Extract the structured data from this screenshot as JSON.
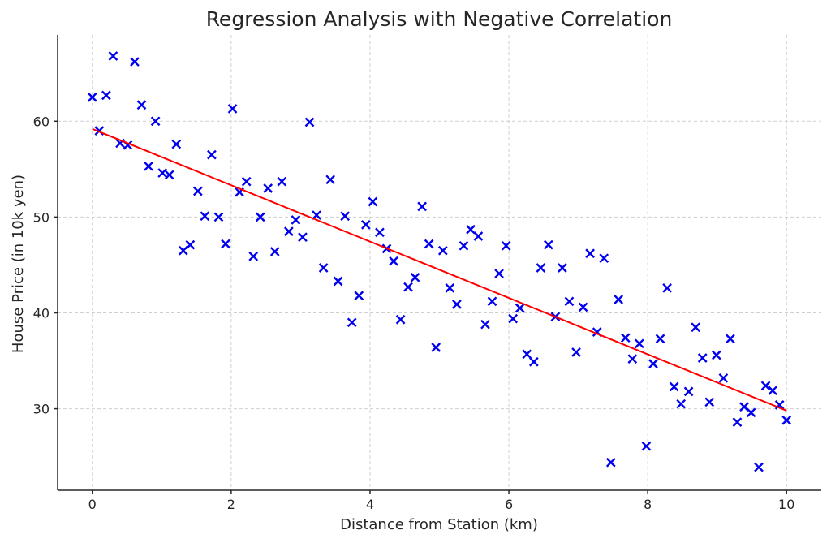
{
  "chart_data": {
    "type": "scatter",
    "title": "Regression Analysis with Negative Correlation",
    "xlabel": "Distance from Station (km)",
    "ylabel": "House Price (in 10k yen)",
    "xlim": [
      -0.5,
      10.5
    ],
    "ylim": [
      21.5,
      69
    ],
    "xticks": [
      0,
      2,
      4,
      6,
      8,
      10
    ],
    "yticks": [
      30,
      40,
      50,
      60
    ],
    "grid": true,
    "colors": {
      "points": "#0000ee",
      "line": "#ff0000"
    },
    "series": [
      {
        "type": "scatter",
        "marker": "x",
        "x": [
          0.0,
          0.1,
          0.2,
          0.3,
          0.4,
          0.51,
          0.61,
          0.71,
          0.81,
          0.91,
          1.01,
          1.11,
          1.21,
          1.31,
          1.41,
          1.52,
          1.62,
          1.72,
          1.82,
          1.92,
          2.02,
          2.12,
          2.22,
          2.32,
          2.42,
          2.53,
          2.63,
          2.73,
          2.83,
          2.93,
          3.03,
          3.13,
          3.23,
          3.33,
          3.43,
          3.54,
          3.64,
          3.74,
          3.84,
          3.94,
          4.04,
          4.14,
          4.24,
          4.34,
          4.44,
          4.55,
          4.65,
          4.75,
          4.85,
          4.95,
          5.05,
          5.15,
          5.25,
          5.35,
          5.45,
          5.56,
          5.66,
          5.76,
          5.86,
          5.96,
          6.06,
          6.16,
          6.26,
          6.36,
          6.46,
          6.57,
          6.67,
          6.77,
          6.87,
          6.97,
          7.07,
          7.17,
          7.27,
          7.37,
          7.47,
          7.58,
          7.68,
          7.78,
          7.88,
          7.98,
          8.08,
          8.18,
          8.28,
          8.38,
          8.48,
          8.59,
          8.69,
          8.79,
          8.89,
          8.99,
          9.09,
          9.19,
          9.29,
          9.39,
          9.49,
          9.6,
          9.7,
          9.8,
          9.9,
          10.0
        ],
        "y": [
          62.5,
          59.0,
          62.7,
          66.8,
          57.7,
          57.5,
          66.2,
          61.7,
          55.3,
          60.0,
          54.6,
          54.4,
          57.6,
          46.5,
          47.1,
          52.7,
          50.1,
          56.5,
          50.0,
          47.2,
          61.3,
          52.6,
          53.7,
          45.9,
          50.0,
          53.0,
          46.4,
          53.7,
          48.5,
          49.7,
          47.9,
          59.9,
          50.2,
          44.7,
          53.9,
          43.3,
          50.1,
          39.0,
          41.8,
          49.2,
          51.6,
          48.4,
          46.7,
          45.4,
          39.3,
          42.7,
          43.7,
          51.1,
          47.2,
          36.4,
          46.5,
          42.6,
          40.9,
          47.0,
          48.7,
          48.0,
          38.8,
          41.2,
          44.1,
          47.0,
          39.4,
          40.5,
          35.7,
          34.9,
          44.7,
          47.1,
          39.6,
          44.7,
          41.2,
          35.9,
          40.6,
          46.2,
          38.0,
          45.7,
          24.4,
          41.4,
          37.4,
          35.2,
          36.8,
          26.1,
          34.7,
          37.3,
          42.6,
          32.3,
          30.5,
          31.8,
          38.5,
          35.3,
          30.7,
          35.6,
          33.2,
          37.3,
          28.6,
          30.2,
          29.6,
          23.9,
          32.4,
          31.9,
          30.4,
          28.8
        ]
      },
      {
        "type": "line",
        "x": [
          0,
          10
        ],
        "y": [
          59.2,
          29.8
        ]
      }
    ]
  }
}
